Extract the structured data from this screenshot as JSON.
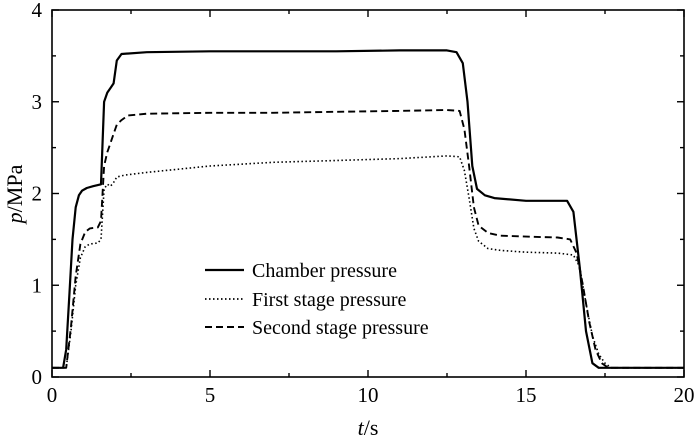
{
  "chart_data": {
    "type": "line",
    "xlabel": {
      "var": "t",
      "unit": "/s"
    },
    "ylabel": {
      "var": "p",
      "unit": "/MPa"
    },
    "xlim": [
      0,
      20
    ],
    "ylim": [
      0,
      4
    ],
    "x_ticks": [
      "0",
      "5",
      "10",
      "15",
      "20"
    ],
    "y_ticks": [
      "0",
      "1",
      "2",
      "3",
      "4"
    ],
    "grid": false,
    "legend_position": "center-left",
    "series": [
      {
        "name": "Chamber pressure",
        "style": "solid",
        "x": [
          0,
          0.35,
          0.45,
          0.55,
          0.65,
          0.75,
          0.85,
          0.95,
          1.1,
          1.3,
          1.55,
          1.65,
          1.75,
          1.85,
          1.95,
          2.05,
          2.2,
          3,
          5,
          7,
          9,
          11,
          12.5,
          12.8,
          13.0,
          13.15,
          13.3,
          13.45,
          13.7,
          14,
          15,
          16,
          16.3,
          16.5,
          16.7,
          16.9,
          17.1,
          17.3,
          17.5,
          17.8,
          18.2,
          20
        ],
        "y": [
          0.1,
          0.1,
          0.3,
          0.9,
          1.5,
          1.85,
          1.98,
          2.03,
          2.06,
          2.08,
          2.1,
          3.0,
          3.1,
          3.15,
          3.2,
          3.45,
          3.52,
          3.54,
          3.55,
          3.55,
          3.55,
          3.56,
          3.56,
          3.54,
          3.42,
          3.0,
          2.3,
          2.05,
          1.98,
          1.95,
          1.92,
          1.92,
          1.92,
          1.8,
          1.2,
          0.5,
          0.15,
          0.1,
          0.1,
          0.1,
          0.1,
          0.1
        ]
      },
      {
        "name": "First stage pressure",
        "style": "dotted",
        "x": [
          0,
          0.45,
          0.6,
          0.75,
          0.9,
          1.05,
          1.2,
          1.45,
          1.55,
          1.65,
          1.75,
          1.85,
          1.95,
          2.05,
          2.3,
          3,
          5,
          7,
          9,
          11,
          12.5,
          12.9,
          13.05,
          13.2,
          13.35,
          13.5,
          13.8,
          14.2,
          15,
          16,
          16.5,
          16.7,
          16.9,
          17.1,
          17.3,
          17.5,
          17.7,
          18.0,
          18.4,
          20
        ],
        "y": [
          0.1,
          0.1,
          0.5,
          1.0,
          1.3,
          1.42,
          1.45,
          1.46,
          1.5,
          2.05,
          2.1,
          2.08,
          2.12,
          2.18,
          2.2,
          2.23,
          2.3,
          2.34,
          2.36,
          2.38,
          2.41,
          2.4,
          2.25,
          1.95,
          1.62,
          1.48,
          1.4,
          1.38,
          1.36,
          1.35,
          1.33,
          1.2,
          0.8,
          0.45,
          0.25,
          0.15,
          0.1,
          0.1,
          0.1,
          0.1
        ]
      },
      {
        "name": "Second stage pressure",
        "style": "dashed",
        "x": [
          0,
          0.45,
          0.6,
          0.75,
          0.9,
          1.05,
          1.2,
          1.45,
          1.55,
          1.65,
          1.75,
          1.85,
          1.95,
          2.05,
          2.2,
          2.4,
          3,
          5,
          7,
          9,
          11,
          12.5,
          12.9,
          13.05,
          13.2,
          13.35,
          13.5,
          13.8,
          14.2,
          15,
          16,
          16.4,
          16.6,
          16.8,
          17.0,
          17.2,
          17.4,
          17.6,
          17.9,
          18.3,
          20
        ],
        "y": [
          0.1,
          0.1,
          0.55,
          1.1,
          1.45,
          1.58,
          1.62,
          1.63,
          1.7,
          2.3,
          2.45,
          2.55,
          2.65,
          2.75,
          2.8,
          2.85,
          2.87,
          2.88,
          2.88,
          2.89,
          2.9,
          2.91,
          2.9,
          2.7,
          2.3,
          1.85,
          1.65,
          1.57,
          1.54,
          1.53,
          1.52,
          1.5,
          1.35,
          1.0,
          0.6,
          0.3,
          0.15,
          0.1,
          0.1,
          0.1,
          0.1
        ]
      }
    ]
  }
}
